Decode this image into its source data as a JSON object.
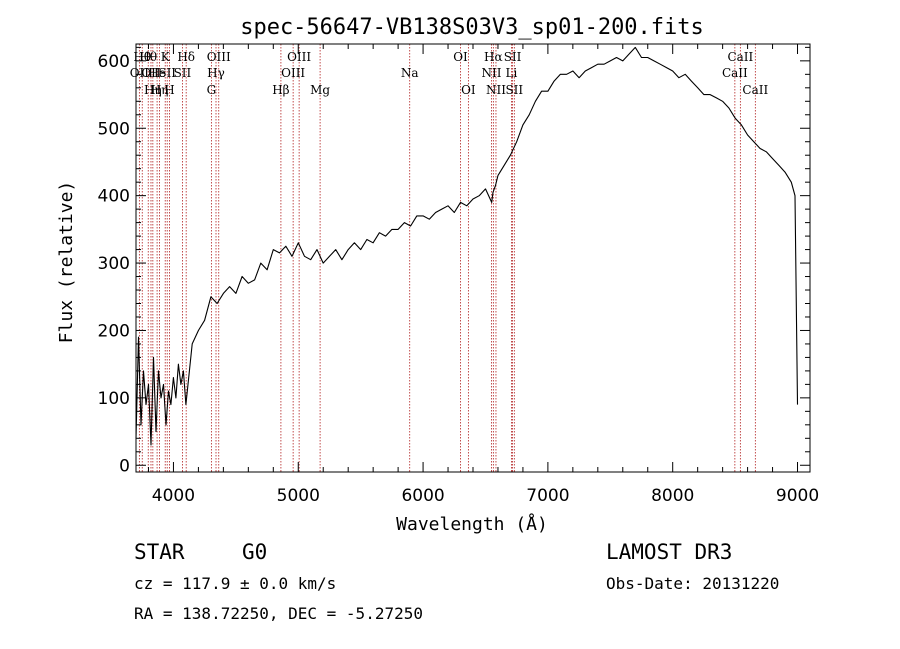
{
  "chart_data": {
    "type": "line",
    "title": "spec-56647-VB138S03V3_sp01-200.fits",
    "xlabel": "Wavelength (Å)",
    "ylabel": "Flux (relative)",
    "xlim": [
      3700,
      9100
    ],
    "ylim": [
      -10,
      625
    ],
    "xticks": [
      4000,
      5000,
      6000,
      7000,
      8000,
      9000
    ],
    "yticks": [
      0,
      100,
      200,
      300,
      400,
      500,
      600
    ],
    "series": [
      {
        "name": "flux",
        "x": [
          3700,
          3720,
          3740,
          3760,
          3780,
          3800,
          3820,
          3840,
          3860,
          3880,
          3900,
          3920,
          3940,
          3960,
          3980,
          4000,
          4020,
          4040,
          4060,
          4080,
          4100,
          4150,
          4200,
          4250,
          4300,
          4350,
          4400,
          4450,
          4500,
          4550,
          4600,
          4650,
          4700,
          4750,
          4800,
          4850,
          4900,
          4950,
          5000,
          5050,
          5100,
          5150,
          5200,
          5250,
          5300,
          5350,
          5400,
          5450,
          5500,
          5550,
          5600,
          5650,
          5700,
          5750,
          5800,
          5850,
          5900,
          5950,
          6000,
          6050,
          6100,
          6150,
          6200,
          6250,
          6300,
          6350,
          6400,
          6450,
          6500,
          6550,
          6560,
          6580,
          6600,
          6650,
          6700,
          6750,
          6800,
          6850,
          6900,
          6950,
          7000,
          7050,
          7100,
          7150,
          7200,
          7250,
          7300,
          7350,
          7400,
          7450,
          7500,
          7550,
          7600,
          7650,
          7700,
          7750,
          7800,
          7850,
          7900,
          7950,
          8000,
          8050,
          8100,
          8150,
          8200,
          8250,
          8300,
          8350,
          8400,
          8450,
          8500,
          8550,
          8600,
          8650,
          8700,
          8750,
          8800,
          8850,
          8900,
          8950,
          8980,
          9000
        ],
        "values": [
          40,
          190,
          60,
          140,
          90,
          120,
          30,
          160,
          50,
          140,
          100,
          120,
          60,
          110,
          90,
          130,
          100,
          150,
          120,
          140,
          90,
          180,
          200,
          215,
          250,
          240,
          255,
          265,
          255,
          280,
          270,
          275,
          300,
          290,
          320,
          315,
          325,
          310,
          330,
          310,
          305,
          320,
          300,
          310,
          320,
          305,
          320,
          330,
          320,
          335,
          330,
          345,
          340,
          350,
          350,
          360,
          355,
          370,
          370,
          365,
          375,
          380,
          385,
          375,
          390,
          385,
          395,
          400,
          410,
          390,
          405,
          415,
          430,
          445,
          460,
          480,
          505,
          520,
          540,
          555,
          555,
          570,
          580,
          580,
          585,
          575,
          585,
          590,
          595,
          595,
          600,
          605,
          600,
          610,
          620,
          605,
          605,
          600,
          595,
          590,
          585,
          575,
          580,
          570,
          560,
          550,
          550,
          545,
          540,
          530,
          515,
          505,
          490,
          480,
          470,
          465,
          455,
          445,
          435,
          420,
          400,
          90
        ]
      }
    ],
    "reference_lines": [
      {
        "wavelength": 3727,
        "label": "OII",
        "row": 2
      },
      {
        "wavelength": 3750,
        "label": "Hθ",
        "row": 1
      },
      {
        "wavelength": 3798,
        "label": "Hθ",
        "row": 1
      },
      {
        "wavelength": 3820,
        "label": "OII",
        "row": 2
      },
      {
        "wavelength": 3835,
        "label": "Hη",
        "row": 3
      },
      {
        "wavelength": 3869,
        "label": "He",
        "row": 2
      },
      {
        "wavelength": 3889,
        "label": "Hη",
        "row": 3
      },
      {
        "wavelength": 3934,
        "label": "K",
        "row": 1
      },
      {
        "wavelength": 3950,
        "label": "SII",
        "row": 2
      },
      {
        "wavelength": 3968,
        "label": "H",
        "row": 3
      },
      {
        "wavelength": 4072,
        "label": "SII",
        "row": 2
      },
      {
        "wavelength": 4102,
        "label": "Hδ",
        "row": 1
      },
      {
        "wavelength": 4304,
        "label": "G",
        "row": 3
      },
      {
        "wavelength": 4341,
        "label": "Hγ",
        "row": 2
      },
      {
        "wavelength": 4363,
        "label": "OIII",
        "row": 1
      },
      {
        "wavelength": 4861,
        "label": "Hβ",
        "row": 3
      },
      {
        "wavelength": 4959,
        "label": "OIII",
        "row": 2
      },
      {
        "wavelength": 5007,
        "label": "OIII",
        "row": 1
      },
      {
        "wavelength": 5175,
        "label": "Mg",
        "row": 3
      },
      {
        "wavelength": 5893,
        "label": "Na",
        "row": 2
      },
      {
        "wavelength": 6300,
        "label": "OI",
        "row": 1
      },
      {
        "wavelength": 6363,
        "label": "OI",
        "row": 3
      },
      {
        "wavelength": 6548,
        "label": "NII",
        "row": 2
      },
      {
        "wavelength": 6563,
        "label": "Hα",
        "row": 1
      },
      {
        "wavelength": 6584,
        "label": "NII",
        "row": 3
      },
      {
        "wavelength": 6708,
        "label": "Li",
        "row": 2
      },
      {
        "wavelength": 6717,
        "label": "SII",
        "row": 1
      },
      {
        "wavelength": 6731,
        "label": "SII",
        "row": 3
      },
      {
        "wavelength": 8498,
        "label": "CaII",
        "row": 2
      },
      {
        "wavelength": 8542,
        "label": "CaII",
        "row": 1
      },
      {
        "wavelength": 8662,
        "label": "CaII",
        "row": 3
      }
    ]
  },
  "info": {
    "object_class": "STAR",
    "subclass": "G0",
    "survey": "LAMOST DR3",
    "cz": "cz = 117.9 ± 0.0 km/s",
    "obs_date": "Obs-Date: 20131220",
    "coords": "RA = 138.72250, DEC =  -5.27250"
  },
  "colors": {
    "spectrum": "#000000",
    "reference_line": "#b22222",
    "axes": "#000000",
    "background": "#ffffff"
  }
}
